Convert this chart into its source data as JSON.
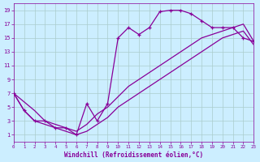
{
  "xlabel": "Windchill (Refroidissement éolien,°C)",
  "bg_color": "#cceeff",
  "grid_color": "#aacccc",
  "line_color": "#880099",
  "xlim": [
    0,
    23
  ],
  "ylim": [
    0,
    20
  ],
  "xticks": [
    0,
    1,
    2,
    3,
    4,
    5,
    6,
    7,
    8,
    9,
    10,
    11,
    12,
    13,
    14,
    15,
    16,
    17,
    18,
    19,
    20,
    21,
    22,
    23
  ],
  "yticks": [
    1,
    3,
    5,
    7,
    9,
    11,
    13,
    15,
    17,
    19
  ],
  "line1_x": [
    0,
    1,
    2,
    3,
    4,
    5,
    6,
    7,
    8,
    9,
    10,
    11,
    12,
    13,
    14,
    15,
    16,
    17,
    18,
    19,
    20,
    21,
    22,
    23
  ],
  "line1_y": [
    7,
    4.5,
    3,
    3,
    2,
    2,
    1,
    5.5,
    3,
    5.5,
    15,
    16.5,
    15.5,
    16.5,
    18.8,
    19.0,
    19.0,
    18.5,
    17.5,
    16.5,
    16.5,
    16.5,
    15.0,
    14.5
  ],
  "line2_x": [
    0,
    2,
    3,
    4,
    5,
    6,
    7,
    8,
    9,
    10,
    11,
    12,
    13,
    14,
    15,
    16,
    17,
    18,
    19,
    20,
    21,
    22,
    23
  ],
  "line2_y": [
    7,
    4.5,
    3,
    2.5,
    2,
    1.5,
    2.5,
    4,
    5,
    6.5,
    8,
    9,
    10,
    11,
    12,
    13,
    14,
    15,
    15.5,
    16,
    16.5,
    17,
    14.5
  ],
  "line3_x": [
    0,
    1,
    2,
    3,
    4,
    5,
    6,
    7,
    8,
    9,
    10,
    11,
    12,
    13,
    14,
    15,
    16,
    17,
    18,
    19,
    20,
    21,
    22,
    23
  ],
  "line3_y": [
    7,
    4.5,
    3,
    2.5,
    2,
    1.5,
    1,
    1.5,
    2.5,
    3.5,
    5,
    6,
    7,
    8,
    9,
    10,
    11,
    12,
    13,
    14,
    15,
    15.5,
    16,
    14
  ]
}
